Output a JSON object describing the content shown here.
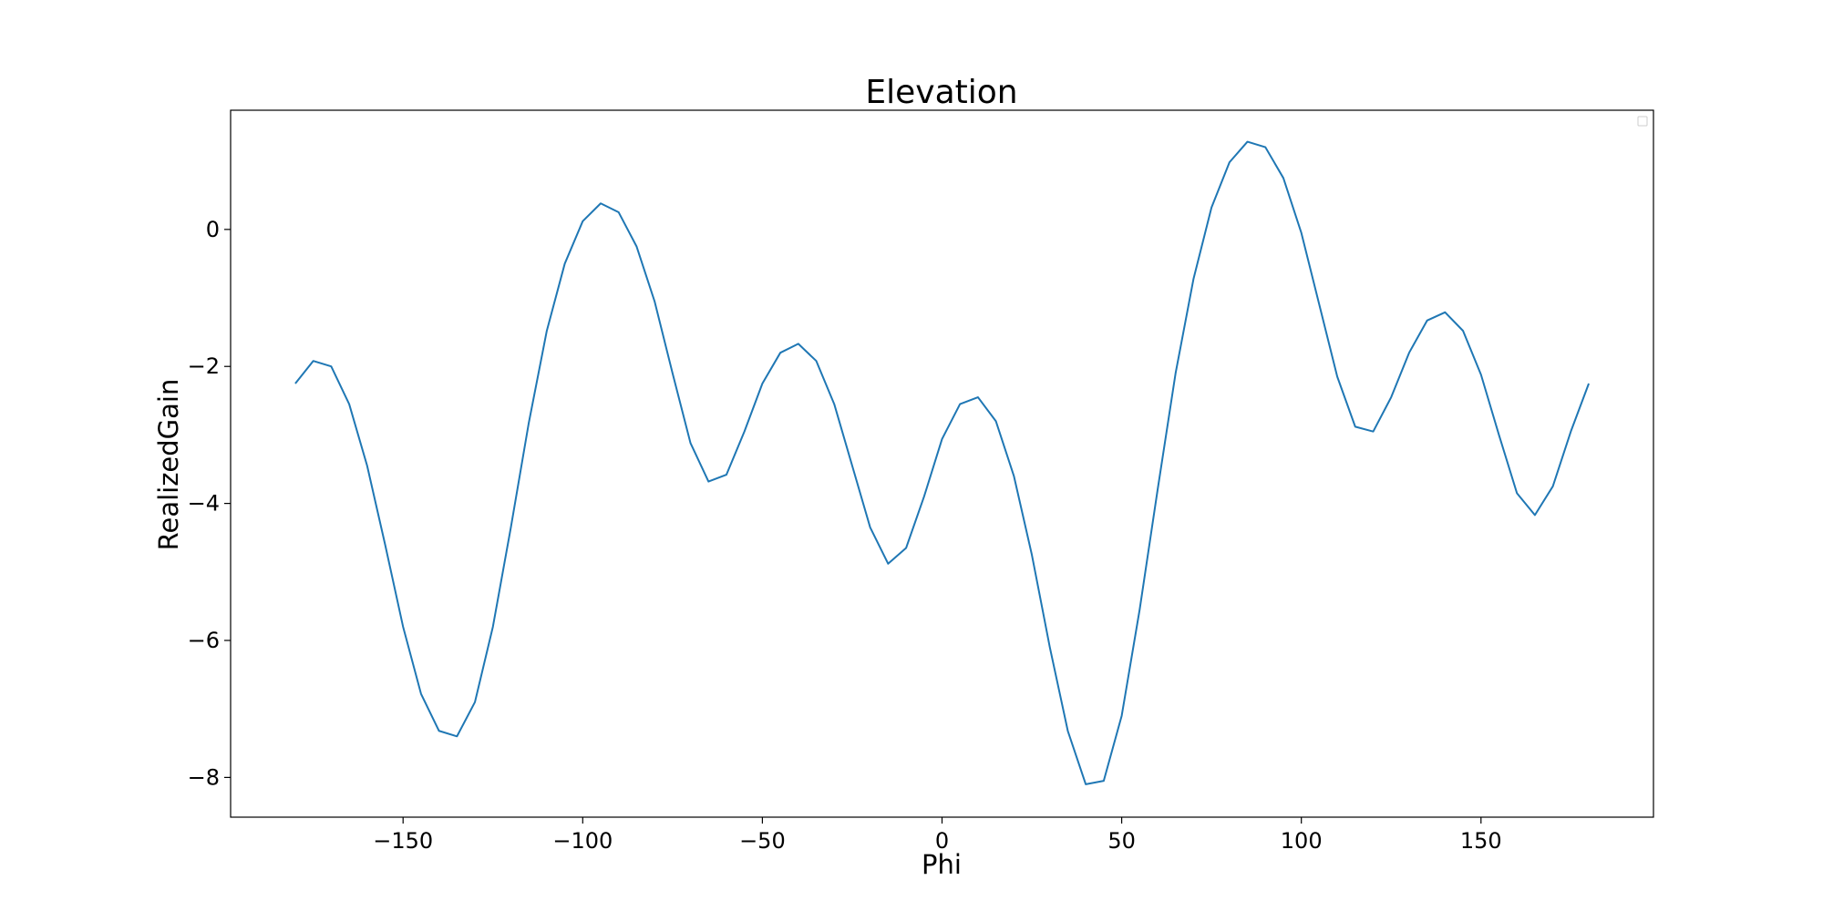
{
  "chart_data": {
    "type": "line",
    "title": "Elevation",
    "xlabel": "Phi",
    "ylabel": "RealizedGain",
    "xlim": [
      -198,
      198
    ],
    "ylim": [
      -8.58,
      1.74
    ],
    "xticks": [
      -150,
      -100,
      -50,
      0,
      50,
      100,
      150
    ],
    "yticks": [
      -8,
      -6,
      -4,
      -2,
      0
    ],
    "grid": false,
    "legend": "top-right",
    "line_color": "#1f77b4",
    "series": [
      {
        "x": [
          -180,
          -175,
          -170,
          -165,
          -160,
          -155,
          -150,
          -145,
          -140,
          -135,
          -130,
          -125,
          -120,
          -115,
          -110,
          -105,
          -100,
          -95,
          -90,
          -85,
          -80,
          -75,
          -70,
          -65,
          -60,
          -55,
          -50,
          -45,
          -40,
          -35,
          -30,
          -25,
          -20,
          -15,
          -10,
          -5,
          0,
          5,
          10,
          15,
          20,
          25,
          30,
          35,
          40,
          45,
          50,
          55,
          60,
          65,
          70,
          75,
          80,
          85,
          90,
          95,
          100,
          105,
          110,
          115,
          120,
          125,
          130,
          135,
          140,
          145,
          150,
          155,
          160,
          165,
          170,
          175,
          180
        ],
        "values": [
          -2.25,
          -1.92,
          -2.0,
          -2.55,
          -3.45,
          -4.6,
          -5.8,
          -6.78,
          -7.32,
          -7.4,
          -6.9,
          -5.8,
          -4.35,
          -2.82,
          -1.48,
          -0.5,
          0.12,
          0.38,
          0.25,
          -0.25,
          -1.05,
          -2.1,
          -3.12,
          -3.68,
          -3.58,
          -2.95,
          -2.25,
          -1.8,
          -1.67,
          -1.92,
          -2.55,
          -3.45,
          -4.35,
          -4.88,
          -4.65,
          -3.9,
          -3.06,
          -2.55,
          -2.45,
          -2.8,
          -3.6,
          -4.75,
          -6.1,
          -7.32,
          -8.1,
          -8.05,
          -7.1,
          -5.55,
          -3.8,
          -2.1,
          -0.72,
          0.32,
          0.98,
          1.28,
          1.2,
          0.75,
          -0.05,
          -1.1,
          -2.15,
          -2.88,
          -2.95,
          -2.45,
          -1.8,
          -1.33,
          -1.21,
          -1.48,
          -2.12,
          -3.0,
          -3.85,
          -4.17,
          -3.75,
          -2.95,
          -2.25
        ]
      }
    ]
  }
}
